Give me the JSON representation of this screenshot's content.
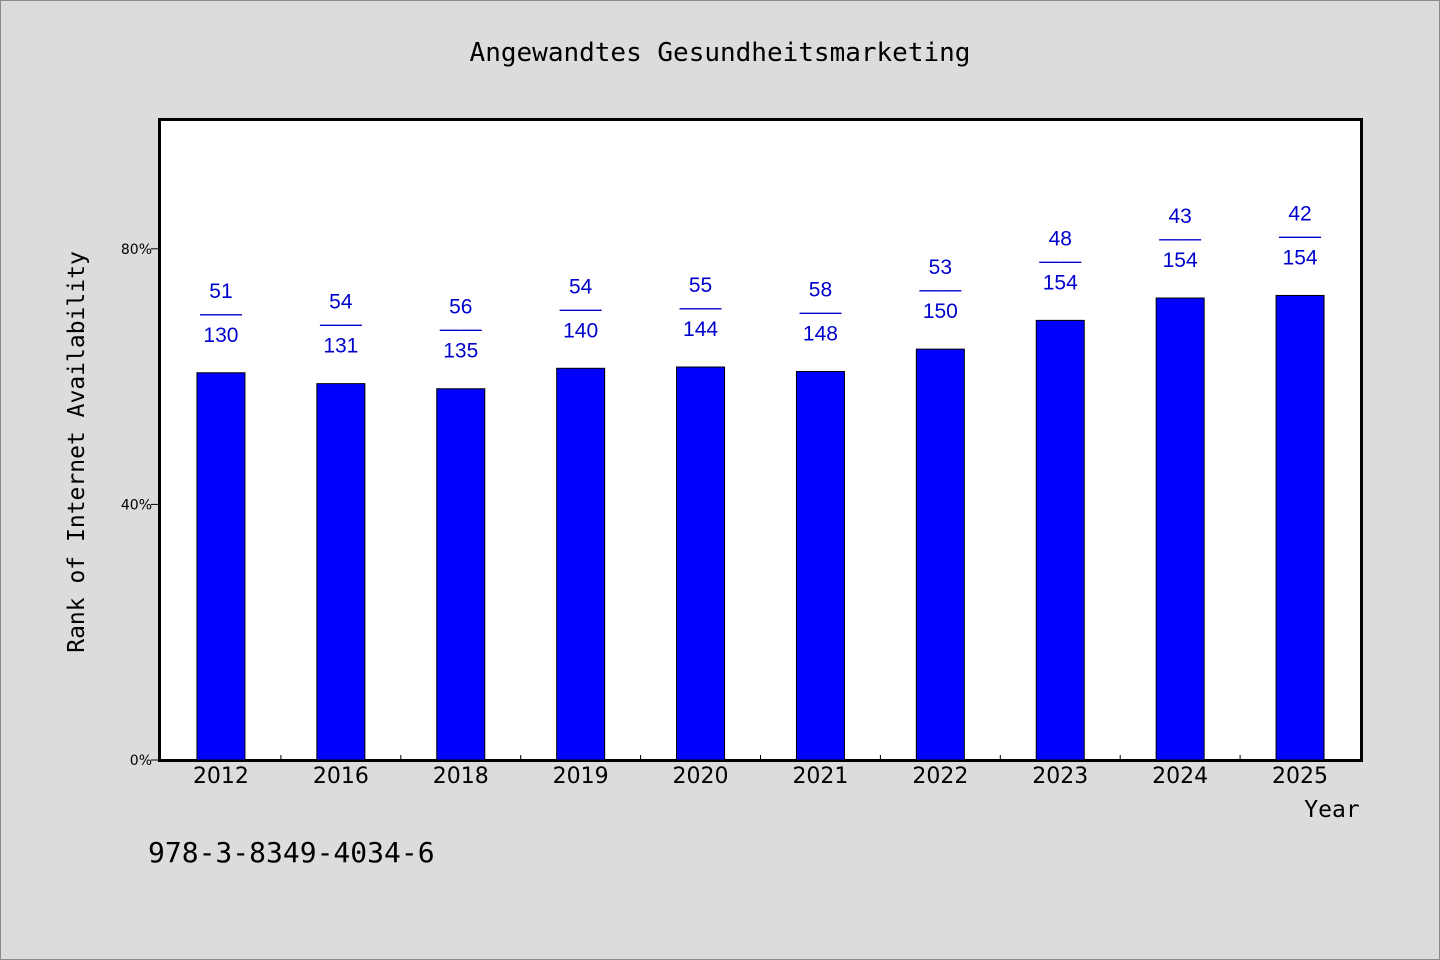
{
  "chart_data": {
    "type": "bar",
    "title": "Angewandtes Gesundheitsmarketing",
    "xlabel": "Year",
    "ylabel": "Rank of Internet Availability",
    "categories": [
      "2012",
      "2016",
      "2018",
      "2019",
      "2020",
      "2021",
      "2022",
      "2023",
      "2024",
      "2025"
    ],
    "values": [
      60.6,
      58.9,
      58.1,
      61.3,
      61.5,
      60.8,
      64.3,
      68.8,
      72.3,
      72.7
    ],
    "labels": [
      {
        "top": "51",
        "sep": "——",
        "bottom": "130"
      },
      {
        "top": "54",
        "sep": "——",
        "bottom": "131"
      },
      {
        "top": "56",
        "sep": "——",
        "bottom": "135"
      },
      {
        "top": "54",
        "sep": "——",
        "bottom": "140"
      },
      {
        "top": "55",
        "sep": "——",
        "bottom": "144"
      },
      {
        "top": "58",
        "sep": "——",
        "bottom": "148"
      },
      {
        "top": "53",
        "sep": "——",
        "bottom": "150"
      },
      {
        "top": "48",
        "sep": "——",
        "bottom": "154"
      },
      {
        "top": "43",
        "sep": "——",
        "bottom": "154"
      },
      {
        "top": "42",
        "sep": "——",
        "bottom": "154"
      }
    ],
    "y_ticks": [
      {
        "value": 0,
        "label": "0%"
      },
      {
        "value": 40,
        "label": "40%"
      },
      {
        "value": 80,
        "label": "80%"
      }
    ],
    "ylim": [
      0,
      100
    ],
    "grid": false,
    "bar_color": "#0000ff",
    "label_color": "#0000cc"
  },
  "footnote": "978-3-8349-4034-6"
}
